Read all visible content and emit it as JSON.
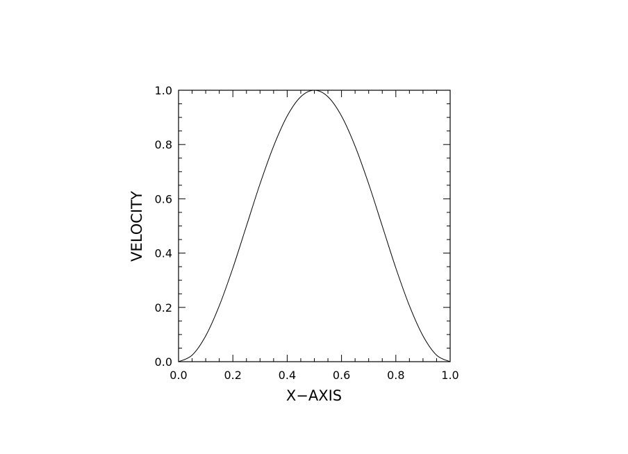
{
  "chart_data": {
    "type": "line",
    "xlabel": "X−AXIS",
    "ylabel": "VELOCITY",
    "xlim": [
      0.0,
      1.0
    ],
    "ylim": [
      0.0,
      1.0
    ],
    "x_ticks": [
      "0.0",
      "0.2",
      "0.4",
      "0.6",
      "0.8",
      "1.0"
    ],
    "y_ticks": [
      "0.0",
      "0.2",
      "0.4",
      "0.6",
      "0.8",
      "1.0"
    ],
    "grid": false,
    "series": [
      {
        "color": "#000000",
        "x": [
          0.0,
          0.05,
          0.1,
          0.15,
          0.2,
          0.25,
          0.3,
          0.35,
          0.4,
          0.45,
          0.5,
          0.55,
          0.6,
          0.65,
          0.7,
          0.75,
          0.8,
          0.85,
          0.9,
          0.95,
          1.0
        ],
        "y": [
          0.0,
          0.024,
          0.095,
          0.206,
          0.345,
          0.5,
          0.655,
          0.794,
          0.905,
          0.976,
          1.0,
          0.976,
          0.905,
          0.794,
          0.655,
          0.5,
          0.345,
          0.206,
          0.095,
          0.024,
          0.0
        ]
      }
    ]
  }
}
